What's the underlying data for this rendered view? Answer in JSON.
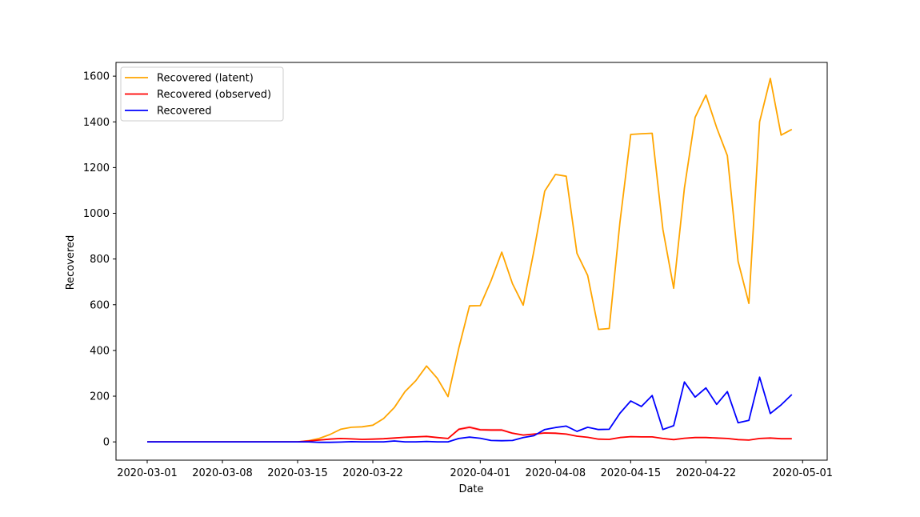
{
  "chart_data": {
    "type": "line",
    "xlabel": "Date",
    "ylabel": "Recovered",
    "x_start": "2020-03-01",
    "x_ticks": [
      "2020-03-01",
      "2020-03-08",
      "2020-03-15",
      "2020-03-22",
      "2020-04-01",
      "2020-04-08",
      "2020-04-15",
      "2020-04-22",
      "2020-05-01"
    ],
    "ylim": [
      -80,
      1660
    ],
    "y_ticks": [
      0,
      200,
      400,
      600,
      800,
      1000,
      1200,
      1400,
      1600
    ],
    "grid": false,
    "legend_position": "top-left",
    "series": [
      {
        "name": "Recovered (latent)",
        "color": "#ffa500",
        "values": [
          0,
          0,
          0,
          0,
          0,
          0,
          0,
          0,
          0,
          0,
          0,
          0,
          0,
          0,
          0,
          5,
          15,
          32,
          55,
          64,
          66,
          73,
          102,
          150,
          220,
          268,
          332,
          278,
          198,
          410,
          595,
          596,
          705,
          830,
          692,
          598,
          837,
          1097,
          1170,
          1162,
          825,
          728,
          492,
          496,
          960,
          1345,
          1348,
          1350,
          930,
          672,
          1110,
          1420,
          1517,
          1375,
          1252,
          790,
          606,
          1400,
          1590,
          1342,
          1367
        ]
      },
      {
        "name": "Recovered (observed)",
        "color": "#ff0000",
        "band_color": "#ffc0cb",
        "values": [
          0,
          0,
          0,
          0,
          0,
          0,
          0,
          0,
          0,
          0,
          0,
          0,
          0,
          0,
          0,
          4,
          8,
          12,
          15,
          13,
          11,
          12,
          14,
          17,
          20,
          22,
          24,
          19,
          15,
          55,
          64,
          53,
          52,
          52,
          38,
          30,
          34,
          39,
          38,
          34,
          25,
          20,
          12,
          11,
          19,
          23,
          22,
          22,
          15,
          10,
          16,
          19,
          19,
          17,
          15,
          10,
          8,
          15,
          17,
          14,
          14
        ]
      },
      {
        "name": "Recovered",
        "color": "#0000ff",
        "values": [
          0,
          0,
          0,
          0,
          0,
          0,
          0,
          0,
          0,
          0,
          0,
          0,
          0,
          0,
          0,
          0,
          -2,
          -2,
          -1,
          1,
          0,
          0,
          0,
          4,
          0,
          0,
          2,
          0,
          0,
          15,
          21,
          16,
          6,
          5,
          6,
          19,
          27,
          54,
          63,
          69,
          46,
          64,
          54,
          55,
          125,
          179,
          155,
          203,
          54,
          71,
          262,
          196,
          236,
          164,
          220,
          84,
          94,
          283,
          124,
          162,
          207
        ]
      }
    ]
  }
}
